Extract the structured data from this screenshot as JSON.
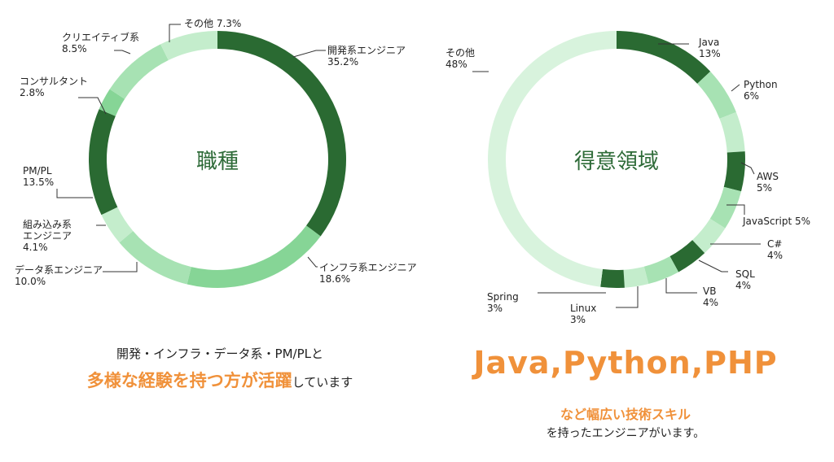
{
  "chart_data": [
    {
      "type": "pie",
      "title": "職種",
      "slices": [
        {
          "label": "開発系エンジニア",
          "value": 35.2,
          "display": "35.2%",
          "color": "#2a6a32"
        },
        {
          "label": "インフラ系エンジニア",
          "value": 18.6,
          "display": "18.6%",
          "color": "#86d596"
        },
        {
          "label": "データ系エンジニア",
          "value": 10.0,
          "display": "10.0%",
          "color": "#a7e2b3"
        },
        {
          "label": "組み込み系エンジニア",
          "value": 4.1,
          "display": "4.1%",
          "color": "#c4edcc"
        },
        {
          "label": "PM/PL",
          "value": 13.5,
          "display": "13.5%",
          "color": "#2a6a32"
        },
        {
          "label": "コンサルタント",
          "value": 2.8,
          "display": "2.8%",
          "color": "#86d596"
        },
        {
          "label": "クリエイティブ系",
          "value": 8.5,
          "display": "8.5%",
          "color": "#a7e2b3"
        },
        {
          "label": "その他",
          "value": 7.3,
          "display": "7.3%",
          "color": "#c4edcc"
        }
      ]
    },
    {
      "type": "pie",
      "title": "得意領域",
      "slices": [
        {
          "label": "Java",
          "value": 13,
          "display": "13%",
          "color": "#2a6a32"
        },
        {
          "label": "Python",
          "value": 6,
          "display": "6%",
          "color": "#a7e2b3"
        },
        {
          "label": "",
          "value": 5,
          "display": "",
          "color": "#c4edcc"
        },
        {
          "label": "AWS",
          "value": 5,
          "display": "5%",
          "color": "#2a6a32"
        },
        {
          "label": "JavaScript",
          "value": 5,
          "display": "5%",
          "color": "#a7e2b3"
        },
        {
          "label": "C#",
          "value": 4,
          "display": "4%",
          "color": "#c4edcc"
        },
        {
          "label": "SQL",
          "value": 4,
          "display": "4%",
          "color": "#2a6a32"
        },
        {
          "label": "VB",
          "value": 4,
          "display": "4%",
          "color": "#a7e2b3"
        },
        {
          "label": "Linux",
          "value": 3,
          "display": "3%",
          "color": "#c4edcc"
        },
        {
          "label": "Spring",
          "value": 3,
          "display": "3%",
          "color": "#2a6a32"
        },
        {
          "label": "その他",
          "value": 48,
          "display": "48%",
          "color": "#d8f3dd"
        }
      ]
    }
  ],
  "captions": {
    "left_line1": "開発・インフラ・データ系・PM/PLと",
    "left_highlight": "多様な経験を持つ方が活躍",
    "left_suffix": "しています",
    "right_heading": "Java,Python,PHP",
    "right_line1": "など幅広い技術スキル",
    "right_line2": "を持ったエンジニアがいます。"
  }
}
